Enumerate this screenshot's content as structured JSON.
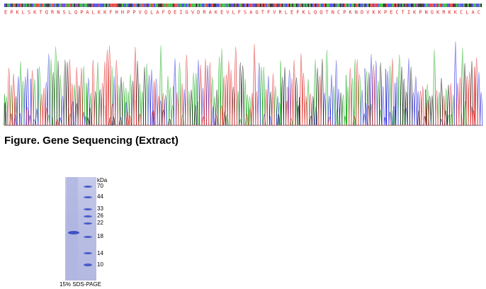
{
  "sequencing": {
    "protein_sequence": "E P K L S K T Q R N S L Q P A L K K F H H P P V Q L A F Q E I G V D R A K E V L F S A G T F V R L E F K L Q Q T N C P K N D V K K P E C T I K P N G K R K K C L A C",
    "trace_colors": {
      "A": "#1cac1c",
      "C": "#2e2ee0",
      "G": "#111111",
      "T": "#e02222"
    },
    "dna_colors": [
      "#1cac1c",
      "#2e2ee0",
      "#111111",
      "#e02222"
    ],
    "protein_color": "#e02222"
  },
  "figure": {
    "caption": "Figure. Gene Sequencing (Extract)"
  },
  "gel": {
    "unit_label": "kDa",
    "markers": [
      "70",
      "44",
      "33",
      "26",
      "22",
      "18",
      "14",
      "10"
    ],
    "caption": "15% SDS-PAGE",
    "colors": {
      "gel": "#b8bde3",
      "band": "#3f52c2",
      "marker_band": "#4a5cc8"
    }
  }
}
